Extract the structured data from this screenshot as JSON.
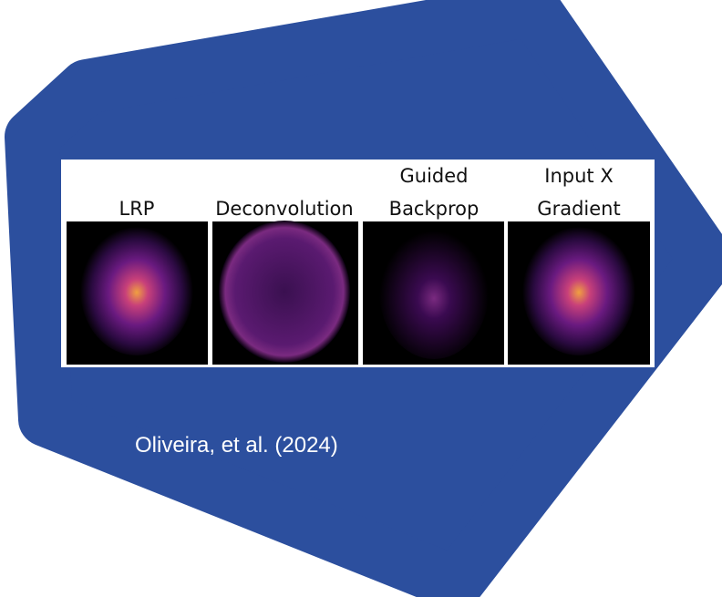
{
  "figure": {
    "panels": [
      {
        "title": [
          "LRP"
        ]
      },
      {
        "title": [
          "Deconvolution"
        ]
      },
      {
        "title": [
          "Guided",
          "Backprop"
        ]
      },
      {
        "title": [
          "Input X",
          "Gradient"
        ]
      }
    ]
  },
  "caption": "Oliveira, et al. (2024)"
}
